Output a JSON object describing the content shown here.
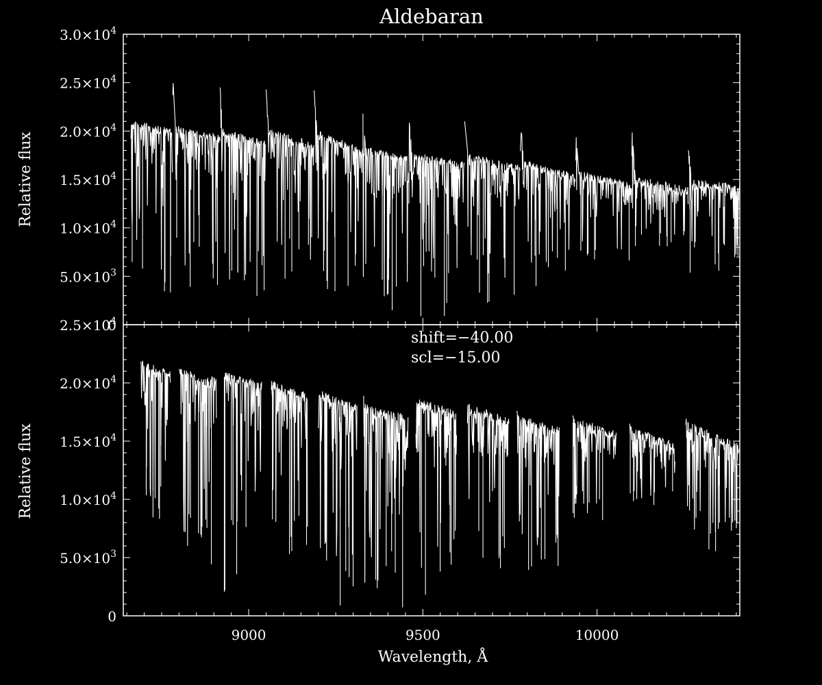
{
  "colors": {
    "background": "#000000",
    "foreground": "#ffffff"
  },
  "chart_data": [
    {
      "type": "line",
      "title": "Aldebaran",
      "xlabel": "",
      "ylabel": "Relative flux",
      "xlim": [
        8640,
        10410
      ],
      "ylim": [
        0,
        30000
      ],
      "grid": false,
      "x_ticks": [
        9000,
        9500,
        10000
      ],
      "x_tick_labels": [
        "",
        "",
        ""
      ],
      "y_ticks": [
        0,
        5000,
        10000,
        15000,
        20000,
        25000,
        30000
      ],
      "y_tick_labels": [
        {
          "mantissa": "0",
          "exp": ""
        },
        {
          "mantissa": "5.0×10",
          "exp": "3"
        },
        {
          "mantissa": "1.0×10",
          "exp": "4"
        },
        {
          "mantissa": "1.5×10",
          "exp": "4"
        },
        {
          "mantissa": "2.0×10",
          "exp": "4"
        },
        {
          "mantissa": "2.5×10",
          "exp": "4"
        },
        {
          "mantissa": "3.0×10",
          "exp": "4"
        }
      ],
      "annotations": [],
      "series": [
        {
          "orders": [
            {
              "x": [
                8662,
                8782
              ],
              "peak": 20800,
              "edge": 20000,
              "cont": [
                20700,
                19800
              ],
              "min": 3000
            },
            {
              "x": [
                8782,
                8918
              ],
              "peak": 25800,
              "edge": 20000,
              "cont": [
                20200,
                19200
              ],
              "min": 3500
            },
            {
              "x": [
                8918,
                9050
              ],
              "peak": 24500,
              "edge": 19500,
              "cont": [
                19800,
                18700
              ],
              "min": 2000
            },
            {
              "x": [
                9050,
                9188
              ],
              "peak": 24300,
              "edge": 19500,
              "cont": [
                19900,
                18400
              ],
              "min": 4500
            },
            {
              "x": [
                9188,
                9328
              ],
              "peak": 24200,
              "edge": 19800,
              "cont": [
                19800,
                17800
              ],
              "min": 3000
            },
            {
              "x": [
                9328,
                9460
              ],
              "peak": 21800,
              "edge": 18000,
              "cont": [
                18000,
                17000
              ],
              "min": 0
            },
            {
              "x": [
                9460,
                9620
              ],
              "peak": 21300,
              "edge": 17800,
              "cont": [
                17500,
                16300
              ],
              "min": 800
            },
            {
              "x": [
                9620,
                9780
              ],
              "peak": 21000,
              "edge": 17500,
              "cont": [
                17300,
                16000
              ],
              "min": 2000
            },
            {
              "x": [
                9780,
                9938
              ],
              "peak": 21500,
              "edge": 16800,
              "cont": [
                16600,
                15200
              ],
              "min": 3700
            },
            {
              "x": [
                9938,
                10100
              ],
              "peak": 20500,
              "edge": 15800,
              "cont": [
                15500,
                14300
              ],
              "min": 6500
            },
            {
              "x": [
                10100,
                10262
              ],
              "peak": 20500,
              "edge": 15200,
              "cont": [
                15000,
                13800
              ],
              "min": 8000
            },
            {
              "x": [
                10262,
                10410
              ],
              "peak": 19000,
              "edge": 15000,
              "cont": [
                14600,
                14100
              ],
              "min": 5300
            }
          ]
        }
      ]
    },
    {
      "type": "line",
      "title": "",
      "xlabel": "Wavelength, Å",
      "ylabel": "Relative flux",
      "xlim": [
        8640,
        10410
      ],
      "ylim": [
        0,
        25000
      ],
      "grid": false,
      "x_ticks": [
        9000,
        9500,
        10000
      ],
      "x_tick_labels": [
        "9000",
        "9500",
        "10000"
      ],
      "y_ticks": [
        0,
        5000,
        10000,
        15000,
        20000,
        25000
      ],
      "y_tick_labels": [
        {
          "mantissa": "0",
          "exp": ""
        },
        {
          "mantissa": "5.0×10",
          "exp": "3"
        },
        {
          "mantissa": "1.0×10",
          "exp": "4"
        },
        {
          "mantissa": "1.5×10",
          "exp": "4"
        },
        {
          "mantissa": "2.0×10",
          "exp": "4"
        },
        {
          "mantissa": "2.5×10",
          "exp": "4"
        }
      ],
      "annotations": [
        "shift=−40.00",
        "scl=−15.00"
      ],
      "series": [
        {
          "orders": [
            {
              "x": [
                8690,
                8775
              ],
              "peak": 21800,
              "edge": 21000,
              "cont": [
                21500,
                20600
              ],
              "min": 7500
            },
            {
              "x": [
                8800,
                8908
              ],
              "peak": 21200,
              "edge": 20500,
              "cont": [
                20800,
                20000
              ],
              "min": 3700
            },
            {
              "x": [
                8930,
                9038
              ],
              "peak": 20900,
              "edge": 20400,
              "cont": [
                20500,
                19700
              ],
              "min": 2000
            },
            {
              "x": [
                9065,
                9170
              ],
              "peak": 20100,
              "edge": 19700,
              "cont": [
                19800,
                18700
              ],
              "min": 4500
            },
            {
              "x": [
                9200,
                9312
              ],
              "peak": 19400,
              "edge": 19000,
              "cont": [
                19000,
                17800
              ],
              "min": 300
            },
            {
              "x": [
                9330,
                9458
              ],
              "peak": 18900,
              "edge": 17500,
              "cont": [
                17800,
                16800
              ],
              "min": 0
            },
            {
              "x": [
                9480,
                9598
              ],
              "peak": 18700,
              "edge": 18300,
              "cont": [
                18300,
                17200
              ],
              "min": 1000
            },
            {
              "x": [
                9628,
                9748
              ],
              "peak": 18100,
              "edge": 17700,
              "cont": [
                17800,
                16600
              ],
              "min": 2000
            },
            {
              "x": [
                9770,
                9892
              ],
              "peak": 17600,
              "edge": 16800,
              "cont": [
                16800,
                15800
              ],
              "min": 3700
            },
            {
              "x": [
                9930,
                10056
              ],
              "peak": 17200,
              "edge": 16500,
              "cont": [
                16600,
                15500
              ],
              "min": 7200
            },
            {
              "x": [
                10094,
                10224
              ],
              "peak": 16500,
              "edge": 15800,
              "cont": [
                15800,
                14600
              ],
              "min": 8800
            },
            {
              "x": [
                10255,
                10410
              ],
              "peak": 17000,
              "edge": 16400,
              "cont": [
                16300,
                14500
              ],
              "min": 5500
            }
          ]
        }
      ]
    }
  ]
}
